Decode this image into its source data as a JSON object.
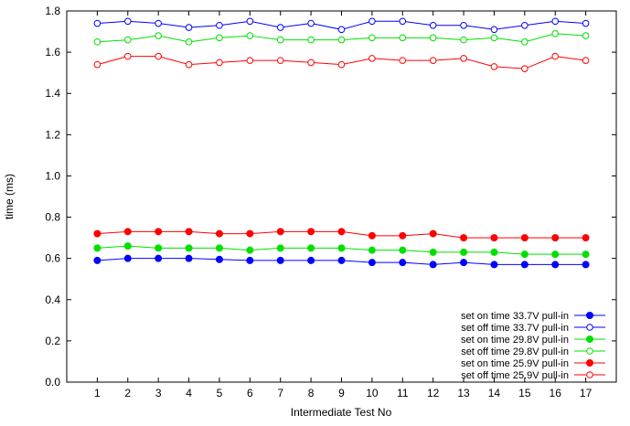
{
  "chart_data": {
    "type": "line",
    "title": "",
    "xlabel": "Intermediate Test No",
    "ylabel": "time (ms)",
    "x": [
      1,
      2,
      3,
      4,
      5,
      6,
      7,
      8,
      9,
      10,
      11,
      12,
      13,
      14,
      15,
      16,
      17
    ],
    "x_tick_labels": [
      "1",
      "2",
      "3",
      "4",
      "5",
      "6",
      "7",
      "8",
      "9",
      "10",
      "11",
      "12",
      "13",
      "14",
      "15",
      "16",
      "17"
    ],
    "xlim": [
      0,
      18
    ],
    "ylim": [
      0.0,
      1.8
    ],
    "y_ticks": [
      0.0,
      0.2,
      0.4,
      0.6,
      0.8,
      1.0,
      1.2,
      1.4,
      1.6,
      1.8
    ],
    "y_tick_labels": [
      "0.0",
      "0.2",
      "0.4",
      "0.6",
      "0.8",
      "1.0",
      "1.2",
      "1.4",
      "1.6",
      "1.8"
    ],
    "grid": false,
    "legend_position": "bottom-right",
    "series": [
      {
        "name": "set on time 33.7V pull-in",
        "color": "#0000ff",
        "marker": "filled-circle",
        "values": [
          0.59,
          0.6,
          0.6,
          0.6,
          0.595,
          0.59,
          0.59,
          0.59,
          0.59,
          0.58,
          0.58,
          0.57,
          0.58,
          0.57,
          0.57,
          0.57,
          0.57
        ]
      },
      {
        "name": "set off time 33.7V pull-in",
        "color": "#0000ff",
        "marker": "open-circle",
        "values": [
          1.74,
          1.75,
          1.74,
          1.72,
          1.73,
          1.75,
          1.72,
          1.74,
          1.71,
          1.75,
          1.75,
          1.73,
          1.73,
          1.71,
          1.73,
          1.75,
          1.74
        ]
      },
      {
        "name": "set on time 29.8V pull-in",
        "color": "#00e000",
        "marker": "filled-circle",
        "values": [
          0.65,
          0.66,
          0.65,
          0.65,
          0.65,
          0.64,
          0.65,
          0.65,
          0.65,
          0.64,
          0.64,
          0.63,
          0.63,
          0.63,
          0.62,
          0.62,
          0.62
        ]
      },
      {
        "name": "set off time 29.8V pull-in",
        "color": "#00e000",
        "marker": "open-circle",
        "values": [
          1.65,
          1.66,
          1.68,
          1.65,
          1.67,
          1.68,
          1.66,
          1.66,
          1.66,
          1.67,
          1.67,
          1.67,
          1.66,
          1.67,
          1.65,
          1.69,
          1.68
        ]
      },
      {
        "name": "set on time 25.9V pull-in",
        "color": "#ff0000",
        "marker": "filled-circle",
        "values": [
          0.72,
          0.73,
          0.73,
          0.73,
          0.72,
          0.72,
          0.73,
          0.73,
          0.73,
          0.71,
          0.71,
          0.72,
          0.7,
          0.7,
          0.7,
          0.7,
          0.7
        ]
      },
      {
        "name": "set off time 25.9V pull-in",
        "color": "#ff0000",
        "marker": "open-circle",
        "values": [
          1.54,
          1.58,
          1.58,
          1.54,
          1.55,
          1.56,
          1.56,
          1.55,
          1.54,
          1.57,
          1.56,
          1.56,
          1.57,
          1.53,
          1.52,
          1.58,
          1.56
        ]
      }
    ]
  }
}
